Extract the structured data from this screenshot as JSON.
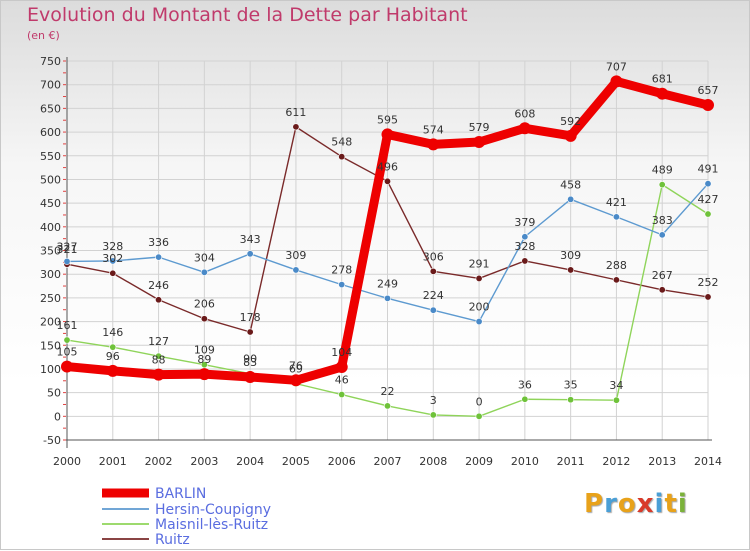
{
  "title": "Evolution du Montant de la Dette par Habitant",
  "unit_label": "(en €)",
  "logo": {
    "text": "Proxiti",
    "letters": [
      "P",
      "r",
      "o",
      "x",
      "i",
      "t",
      "i"
    ],
    "colors": [
      "#e8a21a",
      "#4a9fd6",
      "#e8a21a",
      "#d83a2a",
      "#4a9fd6",
      "#e8a21a",
      "#7bb23a"
    ]
  },
  "chart_data": {
    "type": "line",
    "title": "Evolution du Montant de la Dette par Habitant",
    "ylabel": "(en €)",
    "xlabel": "",
    "x": [
      "2000",
      "2001",
      "2002",
      "2003",
      "2004",
      "2005",
      "2006",
      "2007",
      "2008",
      "2009",
      "2010",
      "2011",
      "2012",
      "2013",
      "2014"
    ],
    "ylim": [
      -50,
      750
    ],
    "yticks": [
      -50,
      0,
      50,
      100,
      150,
      200,
      250,
      300,
      350,
      400,
      450,
      500,
      550,
      600,
      650,
      700,
      750
    ],
    "grid": true,
    "legend_position": "bottom",
    "series": [
      {
        "name": "BARLIN",
        "color": "#ee0000",
        "values": [
          105,
          96,
          88,
          89,
          83,
          76,
          104,
          595,
          574,
          579,
          608,
          592,
          707,
          681,
          657
        ]
      },
      {
        "name": "Hersin-Coupigny",
        "color": "#5d9ad0",
        "values": [
          327,
          328,
          336,
          304,
          343,
          309,
          278,
          249,
          224,
          200,
          379,
          458,
          421,
          383,
          491
        ]
      },
      {
        "name": "Maisnil-lès-Ruitz",
        "color": "#8fd45a",
        "values": [
          161,
          146,
          127,
          109,
          90,
          69,
          46,
          22,
          3,
          0,
          36,
          35,
          34,
          489,
          427
        ]
      },
      {
        "name": "Ruitz",
        "color": "#7a2a2a",
        "values": [
          321,
          302,
          246,
          206,
          178,
          611,
          548,
          496,
          306,
          291,
          328,
          309,
          288,
          267,
          252
        ]
      }
    ]
  }
}
